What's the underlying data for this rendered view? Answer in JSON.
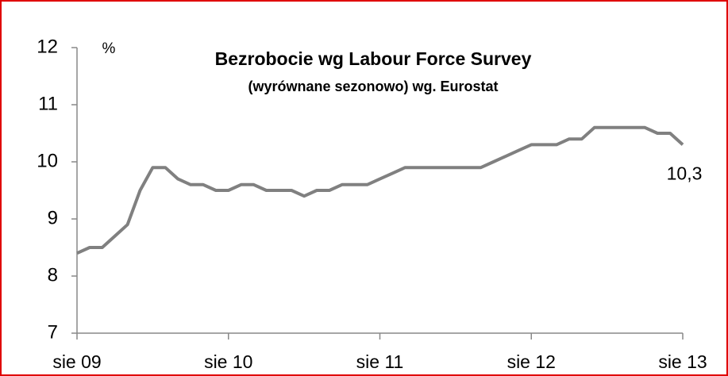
{
  "chart_data": {
    "type": "line",
    "title": "Bezrobocie wg Labour Force Survey",
    "subtitle": "(wyrównane sezonowo) wg. Eurostat",
    "y_label": "%",
    "categories": [
      "sie 09",
      null,
      null,
      null,
      null,
      null,
      null,
      null,
      null,
      null,
      null,
      null,
      "sie 10",
      null,
      null,
      null,
      null,
      null,
      null,
      null,
      null,
      null,
      null,
      null,
      "sie 11",
      null,
      null,
      null,
      null,
      null,
      null,
      null,
      null,
      null,
      null,
      null,
      "sie 12",
      null,
      null,
      null,
      null,
      null,
      null,
      null,
      null,
      null,
      null,
      null,
      "sie 13"
    ],
    "series": [
      {
        "name": "Bezrobocie",
        "color": "#808080",
        "values": [
          8.4,
          8.5,
          8.5,
          8.7,
          8.9,
          9.5,
          9.9,
          9.9,
          9.7,
          9.6,
          9.6,
          9.5,
          9.5,
          9.6,
          9.6,
          9.5,
          9.5,
          9.5,
          9.4,
          9.5,
          9.5,
          9.6,
          9.6,
          9.6,
          9.7,
          9.8,
          9.9,
          9.9,
          9.9,
          9.9,
          9.9,
          9.9,
          9.9,
          10.0,
          10.1,
          10.2,
          10.3,
          10.3,
          10.3,
          10.4,
          10.4,
          10.6,
          10.6,
          10.6,
          10.6,
          10.6,
          10.5,
          10.5,
          10.3
        ],
        "value_labels": [
          null,
          null,
          null,
          null,
          null,
          null,
          null,
          null,
          null,
          null,
          null,
          null,
          null,
          null,
          null,
          null,
          null,
          null,
          null,
          null,
          null,
          null,
          null,
          null,
          null,
          null,
          null,
          null,
          null,
          null,
          null,
          null,
          null,
          null,
          null,
          null,
          null,
          null,
          null,
          null,
          null,
          null,
          null,
          null,
          null,
          null,
          null,
          null,
          "10,3"
        ]
      }
    ],
    "ylim": [
      7,
      12
    ],
    "yticks": [
      7,
      8,
      9,
      10,
      11,
      12
    ],
    "grid": false
  }
}
